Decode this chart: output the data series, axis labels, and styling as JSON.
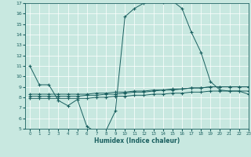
{
  "xlabel": "Humidex (Indice chaleur)",
  "bg_color": "#c8e8e0",
  "grid_color": "#ffffff",
  "line_color": "#1a6060",
  "xlim": [
    -0.5,
    23
  ],
  "ylim": [
    5,
    17
  ],
  "yticks": [
    5,
    6,
    7,
    8,
    9,
    10,
    11,
    12,
    13,
    14,
    15,
    16,
    17
  ],
  "xticks": [
    0,
    1,
    2,
    3,
    4,
    5,
    6,
    7,
    8,
    9,
    10,
    11,
    12,
    13,
    14,
    15,
    16,
    17,
    18,
    19,
    20,
    21,
    22,
    23
  ],
  "series": [
    {
      "x": [
        0,
        1,
        2,
        3,
        4,
        5,
        6,
        7,
        8,
        9,
        10,
        11,
        12,
        13,
        14,
        15,
        16,
        17,
        18,
        19,
        20,
        21,
        22,
        23
      ],
      "y": [
        11.0,
        9.2,
        9.2,
        7.7,
        7.2,
        7.8,
        5.2,
        4.7,
        4.8,
        6.7,
        15.7,
        16.5,
        17.0,
        17.2,
        17.1,
        17.2,
        16.5,
        14.2,
        12.3,
        9.5,
        8.7,
        8.6,
        8.6,
        8.3
      ]
    },
    {
      "x": [
        0,
        1,
        2,
        3,
        4,
        5,
        6,
        7,
        8,
        9,
        10,
        11,
        12,
        13,
        14,
        15,
        16,
        17,
        18,
        19,
        20,
        21,
        22,
        23
      ],
      "y": [
        8.1,
        8.1,
        8.1,
        8.1,
        8.1,
        8.1,
        8.2,
        8.2,
        8.3,
        8.3,
        8.4,
        8.5,
        8.5,
        8.6,
        8.7,
        8.7,
        8.8,
        8.9,
        8.9,
        9.0,
        9.0,
        9.0,
        9.0,
        9.0
      ]
    },
    {
      "x": [
        0,
        1,
        2,
        3,
        4,
        5,
        6,
        7,
        8,
        9,
        10,
        11,
        12,
        13,
        14,
        15,
        16,
        17,
        18,
        19,
        20,
        21,
        22,
        23
      ],
      "y": [
        8.3,
        8.3,
        8.3,
        8.3,
        8.3,
        8.3,
        8.3,
        8.4,
        8.4,
        8.5,
        8.5,
        8.6,
        8.6,
        8.7,
        8.7,
        8.8,
        8.8,
        8.9,
        8.9,
        9.0,
        9.0,
        9.0,
        9.0,
        9.0
      ]
    },
    {
      "x": [
        0,
        1,
        2,
        3,
        4,
        5,
        6,
        7,
        8,
        9,
        10,
        11,
        12,
        13,
        14,
        15,
        16,
        17,
        18,
        19,
        20,
        21,
        22,
        23
      ],
      "y": [
        7.9,
        7.9,
        7.9,
        7.9,
        7.9,
        7.9,
        7.9,
        8.0,
        8.0,
        8.1,
        8.1,
        8.2,
        8.2,
        8.3,
        8.3,
        8.4,
        8.4,
        8.5,
        8.5,
        8.6,
        8.6,
        8.6,
        8.6,
        8.6
      ]
    }
  ]
}
